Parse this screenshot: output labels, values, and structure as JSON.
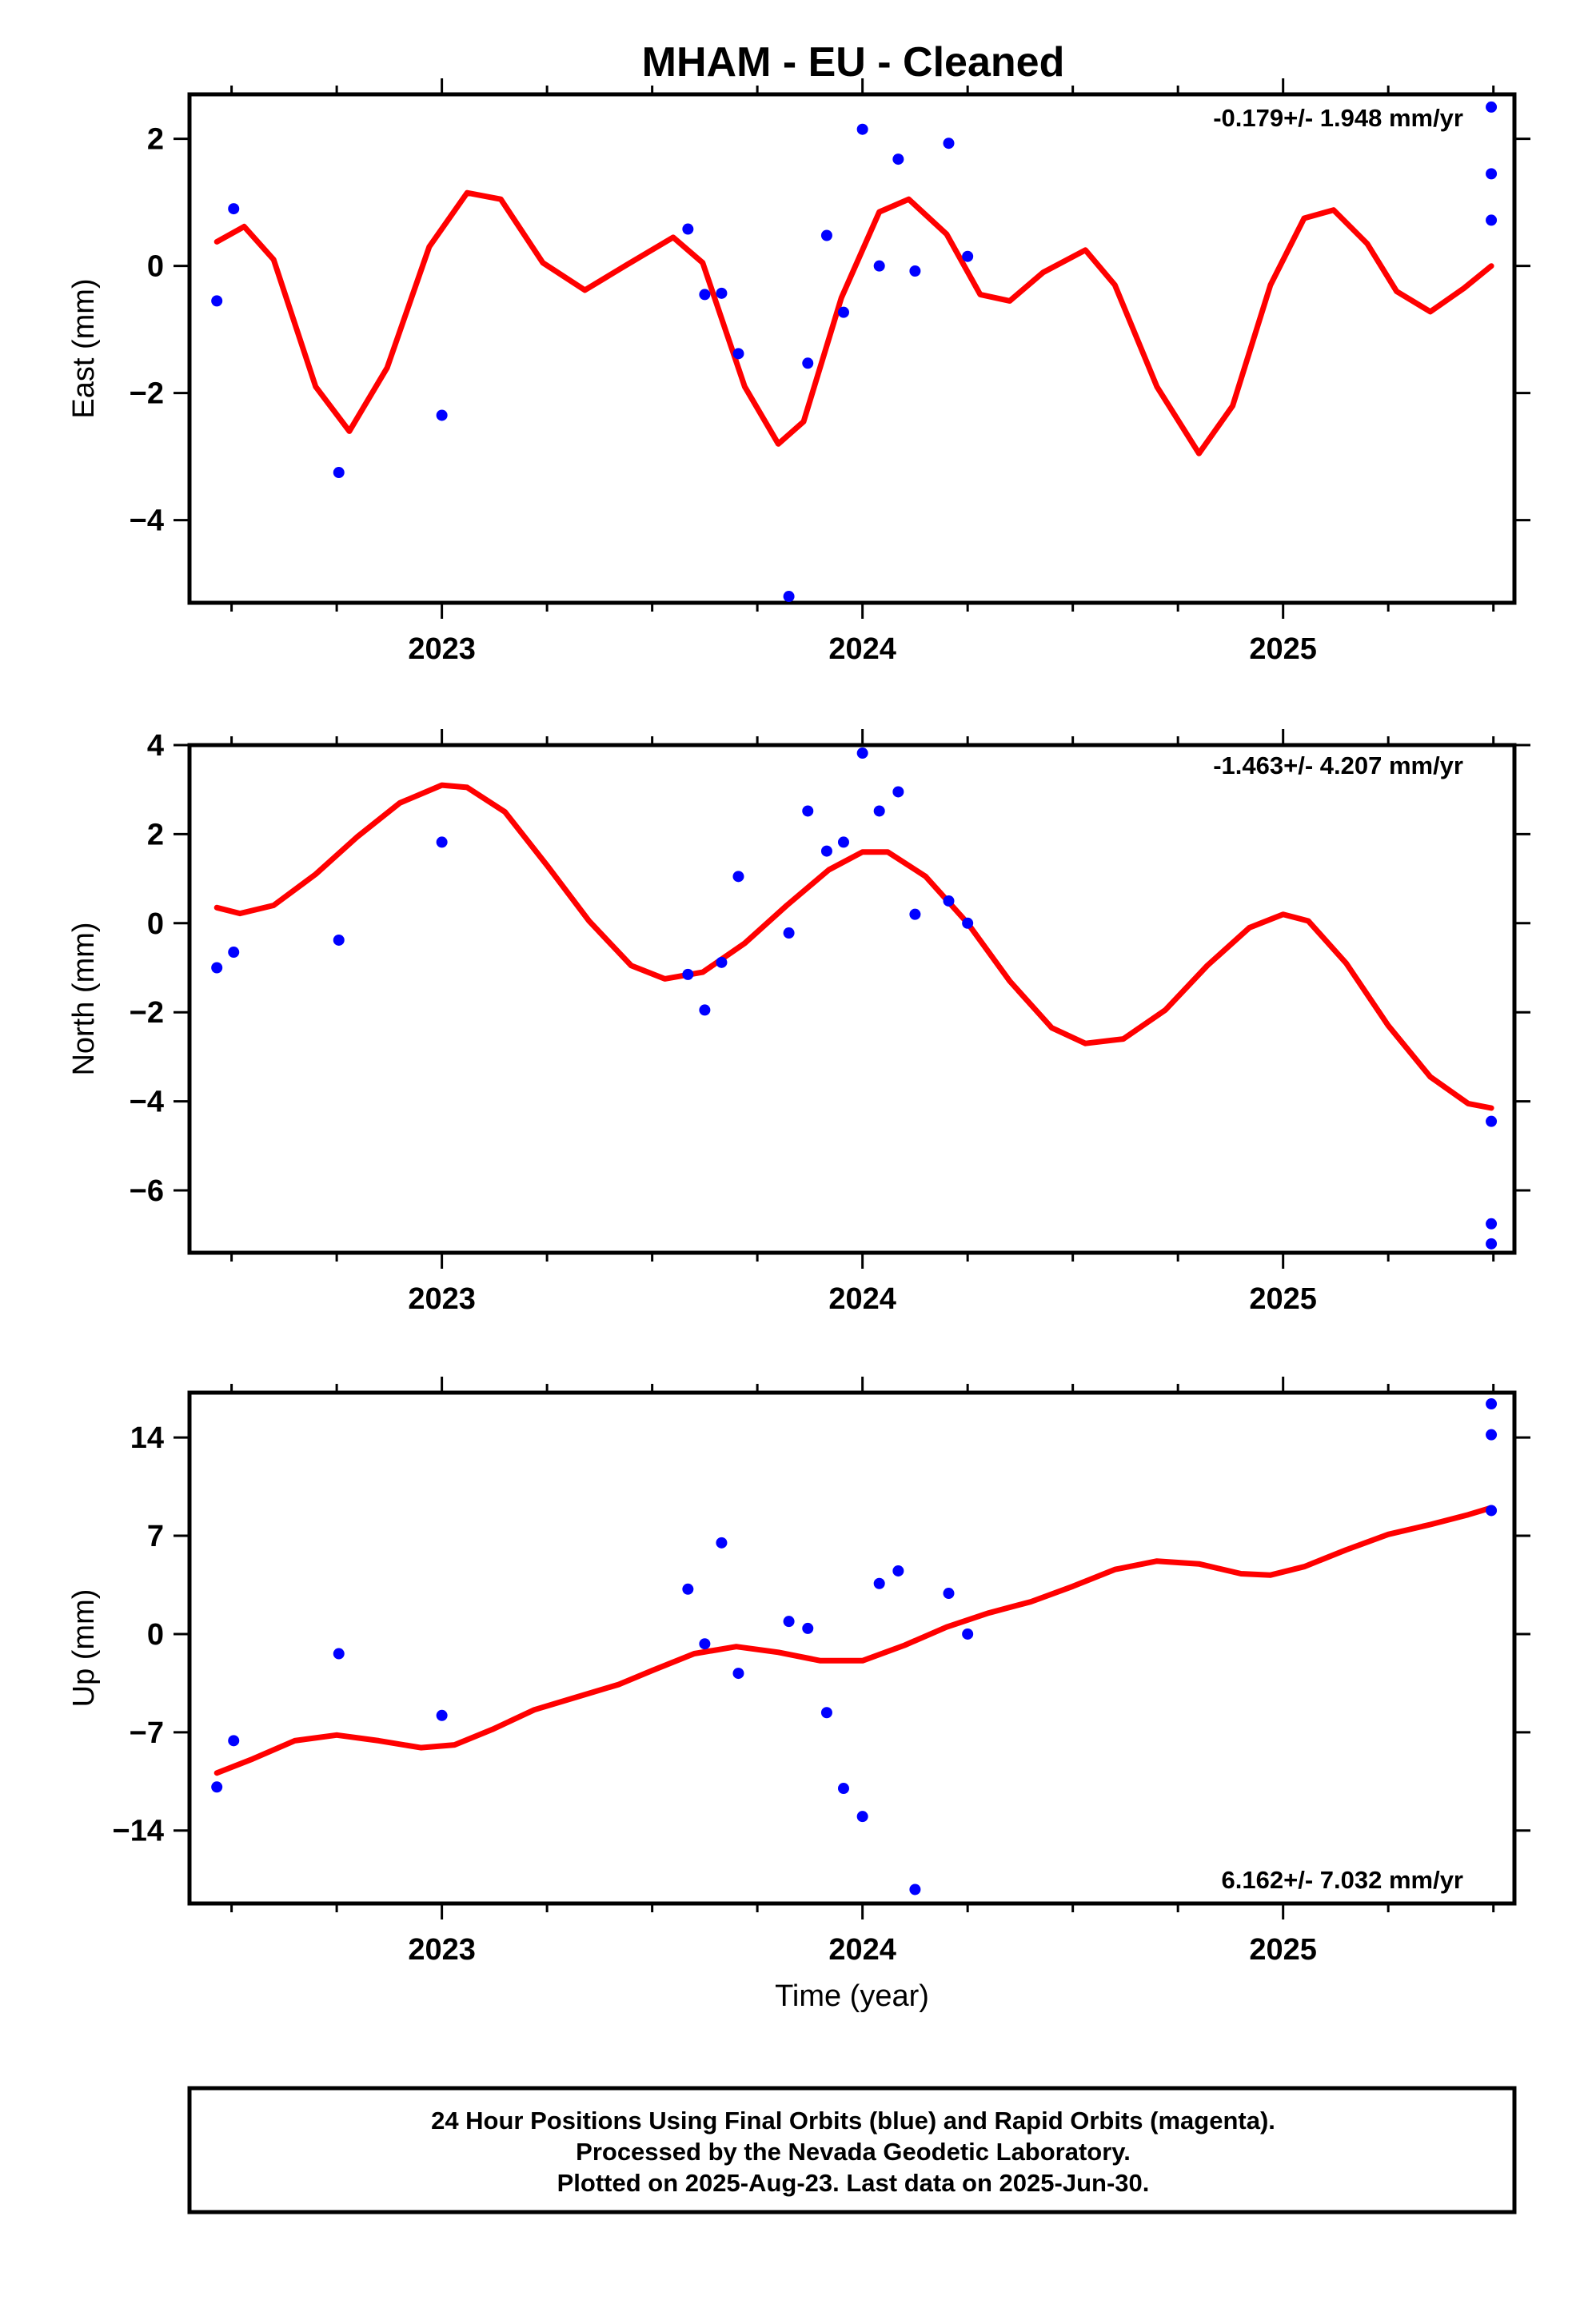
{
  "title": "MHAM  - EU - Cleaned",
  "footer": {
    "line1": "24 Hour Positions Using Final Orbits (blue) and Rapid Orbits (magenta).",
    "line2": "Processed by the Nevada Geodetic Laboratory.",
    "line3": "Plotted on 2025-Aug-23. Last data on 2025-Jun-30."
  },
  "colors": {
    "data": "#0000ff",
    "fit": "#ff0000",
    "axis": "#000000"
  },
  "chart_data": [
    {
      "type": "scatter",
      "ylabel": "East (mm)",
      "xlabel": "",
      "rate_text": "-0.179+/- 1.948 mm/yr",
      "xlim": [
        2022.4,
        2025.55
      ],
      "ylim": [
        -5.3,
        2.7
      ],
      "x_ticks": [
        2023,
        2024,
        2025
      ],
      "y_ticks": [
        2,
        0,
        -2,
        -4
      ],
      "y_tick_labels": [
        "2",
        "0",
        "−2",
        "−4"
      ],
      "points": [
        [
          2022.465,
          -0.55
        ],
        [
          2022.505,
          0.9
        ],
        [
          2022.755,
          -3.25
        ],
        [
          2023.0,
          -2.35
        ],
        [
          2023.585,
          0.58
        ],
        [
          2023.625,
          -0.45
        ],
        [
          2023.665,
          -0.43
        ],
        [
          2023.705,
          -1.38
        ],
        [
          2023.825,
          -5.2
        ],
        [
          2023.87,
          -1.53
        ],
        [
          2023.915,
          0.48
        ],
        [
          2023.955,
          -0.73
        ],
        [
          2024.0,
          2.15
        ],
        [
          2024.04,
          0.0
        ],
        [
          2024.085,
          1.68
        ],
        [
          2024.125,
          -0.08
        ],
        [
          2024.205,
          1.93
        ],
        [
          2024.25,
          0.15
        ],
        [
          2025.495,
          2.5
        ],
        [
          2025.495,
          1.45
        ],
        [
          2025.495,
          0.72
        ]
      ],
      "fit": [
        [
          2022.465,
          0.38
        ],
        [
          2022.53,
          0.62
        ],
        [
          2022.6,
          0.1
        ],
        [
          2022.7,
          -1.9
        ],
        [
          2022.78,
          -2.6
        ],
        [
          2022.87,
          -1.6
        ],
        [
          2022.97,
          0.3
        ],
        [
          2023.06,
          1.15
        ],
        [
          2023.14,
          1.05
        ],
        [
          2023.24,
          0.05
        ],
        [
          2023.34,
          -0.38
        ],
        [
          2023.44,
          0.02
        ],
        [
          2023.55,
          0.45
        ],
        [
          2023.62,
          0.05
        ],
        [
          2023.72,
          -1.9
        ],
        [
          2023.8,
          -2.8
        ],
        [
          2023.86,
          -2.45
        ],
        [
          2023.95,
          -0.5
        ],
        [
          2024.04,
          0.85
        ],
        [
          2024.11,
          1.05
        ],
        [
          2024.2,
          0.5
        ],
        [
          2024.28,
          -0.45
        ],
        [
          2024.35,
          -0.55
        ],
        [
          2024.43,
          -0.1
        ],
        [
          2024.53,
          0.25
        ],
        [
          2024.6,
          -0.3
        ],
        [
          2024.7,
          -1.9
        ],
        [
          2024.8,
          -2.95
        ],
        [
          2024.88,
          -2.2
        ],
        [
          2024.97,
          -0.3
        ],
        [
          2025.05,
          0.75
        ],
        [
          2025.12,
          0.88
        ],
        [
          2025.2,
          0.35
        ],
        [
          2025.27,
          -0.4
        ],
        [
          2025.35,
          -0.72
        ],
        [
          2025.43,
          -0.35
        ],
        [
          2025.495,
          0.0
        ]
      ]
    },
    {
      "type": "scatter",
      "ylabel": "North (mm)",
      "xlabel": "",
      "rate_text": "-1.463+/- 4.207 mm/yr",
      "xlim": [
        2022.4,
        2025.55
      ],
      "ylim": [
        -7.4,
        4.0
      ],
      "x_ticks": [
        2023,
        2024,
        2025
      ],
      "y_ticks": [
        4,
        2,
        0,
        -2,
        -4,
        -6
      ],
      "y_tick_labels": [
        "4",
        "2",
        "0",
        "−2",
        "−4",
        "−6"
      ],
      "points": [
        [
          2022.465,
          -1.0
        ],
        [
          2022.505,
          -0.65
        ],
        [
          2022.755,
          -0.38
        ],
        [
          2023.0,
          1.82
        ],
        [
          2023.585,
          -1.15
        ],
        [
          2023.625,
          -1.95
        ],
        [
          2023.665,
          -0.88
        ],
        [
          2023.705,
          1.05
        ],
        [
          2023.825,
          -0.22
        ],
        [
          2023.87,
          2.52
        ],
        [
          2023.915,
          1.62
        ],
        [
          2023.955,
          1.82
        ],
        [
          2024.0,
          3.82
        ],
        [
          2024.04,
          2.52
        ],
        [
          2024.085,
          2.95
        ],
        [
          2024.125,
          0.2
        ],
        [
          2024.205,
          0.5
        ],
        [
          2024.25,
          0.0
        ],
        [
          2025.495,
          -4.45
        ],
        [
          2025.495,
          -6.75
        ],
        [
          2025.495,
          -7.2
        ]
      ],
      "fit": [
        [
          2022.465,
          0.35
        ],
        [
          2022.52,
          0.22
        ],
        [
          2022.6,
          0.4
        ],
        [
          2022.7,
          1.1
        ],
        [
          2022.8,
          1.95
        ],
        [
          2022.9,
          2.7
        ],
        [
          2023.0,
          3.1
        ],
        [
          2023.06,
          3.05
        ],
        [
          2023.15,
          2.5
        ],
        [
          2023.25,
          1.3
        ],
        [
          2023.35,
          0.05
        ],
        [
          2023.45,
          -0.95
        ],
        [
          2023.53,
          -1.25
        ],
        [
          2023.62,
          -1.1
        ],
        [
          2023.72,
          -0.45
        ],
        [
          2023.82,
          0.4
        ],
        [
          2023.92,
          1.2
        ],
        [
          2024.0,
          1.6
        ],
        [
          2024.06,
          1.6
        ],
        [
          2024.15,
          1.05
        ],
        [
          2024.25,
          0.0
        ],
        [
          2024.35,
          -1.3
        ],
        [
          2024.45,
          -2.35
        ],
        [
          2024.53,
          -2.7
        ],
        [
          2024.62,
          -2.6
        ],
        [
          2024.72,
          -1.95
        ],
        [
          2024.82,
          -0.95
        ],
        [
          2024.92,
          -0.1
        ],
        [
          2025.0,
          0.2
        ],
        [
          2025.06,
          0.05
        ],
        [
          2025.15,
          -0.9
        ],
        [
          2025.25,
          -2.3
        ],
        [
          2025.35,
          -3.45
        ],
        [
          2025.44,
          -4.05
        ],
        [
          2025.495,
          -4.15
        ]
      ]
    },
    {
      "type": "scatter",
      "ylabel": "Up (mm)",
      "xlabel": "Time (year)",
      "rate_text": "6.162+/- 7.032 mm/yr",
      "xlim": [
        2022.4,
        2025.55
      ],
      "ylim": [
        -19.2,
        17.2
      ],
      "x_ticks": [
        2023,
        2024,
        2025
      ],
      "y_ticks": [
        14,
        7,
        0,
        -7,
        -14
      ],
      "y_tick_labels": [
        "14",
        "7",
        "0",
        "−7",
        "−14"
      ],
      "points": [
        [
          2022.465,
          -10.9
        ],
        [
          2022.505,
          -7.6
        ],
        [
          2022.755,
          -1.4
        ],
        [
          2023.0,
          -5.8
        ],
        [
          2023.585,
          3.2
        ],
        [
          2023.625,
          -0.7
        ],
        [
          2023.665,
          6.5
        ],
        [
          2023.705,
          -2.8
        ],
        [
          2023.825,
          0.9
        ],
        [
          2023.87,
          0.4
        ],
        [
          2023.915,
          -5.6
        ],
        [
          2023.955,
          -11.0
        ],
        [
          2024.0,
          -13.0
        ],
        [
          2024.04,
          3.6
        ],
        [
          2024.085,
          4.5
        ],
        [
          2024.125,
          -18.2
        ],
        [
          2024.205,
          2.9
        ],
        [
          2024.25,
          0.0
        ],
        [
          2025.495,
          16.4
        ],
        [
          2025.495,
          14.2
        ],
        [
          2025.495,
          8.8
        ]
      ],
      "fit": [
        [
          2022.465,
          -9.9
        ],
        [
          2022.55,
          -8.9
        ],
        [
          2022.65,
          -7.6
        ],
        [
          2022.75,
          -7.2
        ],
        [
          2022.85,
          -7.6
        ],
        [
          2022.95,
          -8.1
        ],
        [
          2023.03,
          -7.9
        ],
        [
          2023.12,
          -6.8
        ],
        [
          2023.22,
          -5.4
        ],
        [
          2023.32,
          -4.5
        ],
        [
          2023.42,
          -3.6
        ],
        [
          2023.5,
          -2.6
        ],
        [
          2023.6,
          -1.4
        ],
        [
          2023.7,
          -0.9
        ],
        [
          2023.8,
          -1.3
        ],
        [
          2023.9,
          -1.9
        ],
        [
          2024.0,
          -1.9
        ],
        [
          2024.1,
          -0.8
        ],
        [
          2024.2,
          0.5
        ],
        [
          2024.3,
          1.5
        ],
        [
          2024.4,
          2.3
        ],
        [
          2024.5,
          3.4
        ],
        [
          2024.6,
          4.6
        ],
        [
          2024.7,
          5.2
        ],
        [
          2024.8,
          5.0
        ],
        [
          2024.9,
          4.3
        ],
        [
          2024.97,
          4.2
        ],
        [
          2025.05,
          4.8
        ],
        [
          2025.15,
          6.0
        ],
        [
          2025.25,
          7.1
        ],
        [
          2025.35,
          7.8
        ],
        [
          2025.44,
          8.5
        ],
        [
          2025.495,
          9.0
        ]
      ]
    }
  ]
}
